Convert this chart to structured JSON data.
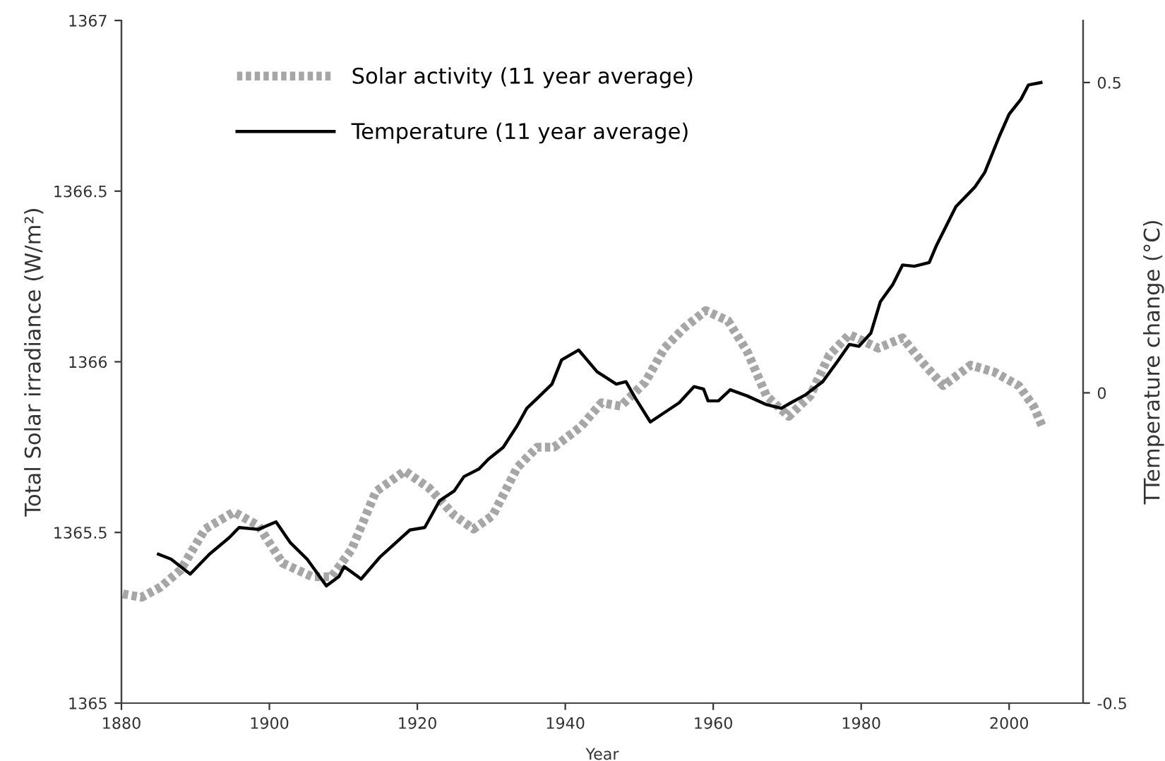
{
  "chart_data": {
    "type": "line",
    "xlabel": "Year",
    "ylabel": "Total Solar irradiance (W/m²)",
    "y2label": "TTemperature change (°C)",
    "xlim": [
      1880,
      2010
    ],
    "xticks": [
      1880,
      1900,
      1920,
      1940,
      1960,
      1980,
      2000
    ],
    "ylim": [
      1365,
      1367
    ],
    "yticks": [
      1365,
      1365.5,
      1366,
      1366.5,
      1367
    ],
    "y2lim": [
      -0.5,
      0.6
    ],
    "y2ticks": [
      -0.5,
      0,
      0.5
    ],
    "legend": "top left",
    "grid": false,
    "series": [
      {
        "name": "Solar activity (11 year average)",
        "color": "#a6a6a6",
        "line_style": "dotted",
        "x": [
          1880.2,
          1882.7,
          1885.3,
          1888,
          1891.3,
          1895.2,
          1898.5,
          1901.8,
          1905.8,
          1908.4,
          1911.1,
          1914.4,
          1918.3,
          1921.6,
          1925,
          1927.6,
          1930.2,
          1933.5,
          1936.2,
          1938.5,
          1942.1,
          1944.9,
          1947.5,
          1950.8,
          1953.4,
          1956.1,
          1959,
          1962,
          1964.6,
          1967.2,
          1970.2,
          1973.1,
          1975.7,
          1978.4,
          1982.3,
          1985.6,
          1988.2,
          1991.1,
          1994.8,
          1998,
          2001.3,
          2003.3,
          2004.5
        ],
        "values": [
          1365.32,
          1365.31,
          1365.34,
          1365.39,
          1365.51,
          1365.56,
          1365.52,
          1365.41,
          1365.37,
          1365.37,
          1365.45,
          1365.62,
          1365.68,
          1365.63,
          1365.55,
          1365.51,
          1365.55,
          1365.69,
          1365.75,
          1365.75,
          1365.81,
          1365.88,
          1365.87,
          1365.94,
          1366.04,
          1366.1,
          1366.15,
          1366.12,
          1366.03,
          1365.9,
          1365.84,
          1365.9,
          1366.02,
          1366.08,
          1366.04,
          1366.07,
          1366.0,
          1365.93,
          1365.99,
          1365.97,
          1365.93,
          1365.87,
          1365.81
        ]
      },
      {
        "name": "Temperature (11 year average)",
        "color": "#000000",
        "line_style": "solid",
        "axis": "y2",
        "x": [
          1885,
          1886.7,
          1889.3,
          1891.9,
          1894.6,
          1895.9,
          1898.5,
          1900.9,
          1902.8,
          1905.1,
          1907.7,
          1909.4,
          1910.1,
          1912.4,
          1915,
          1919,
          1921,
          1923,
          1925,
          1926.3,
          1928.3,
          1929.6,
          1931.6,
          1933.5,
          1934.8,
          1936.2,
          1938.2,
          1939.5,
          1941.8,
          1944.3,
          1946.9,
          1948.2,
          1949.5,
          1951.5,
          1955.4,
          1957.4,
          1958.7,
          1959.3,
          1960.7,
          1962.3,
          1964.6,
          1967.2,
          1969.2,
          1970.5,
          1972.5,
          1974.8,
          1976.7,
          1978.4,
          1979.7,
          1981.3,
          1982.6,
          1984.3,
          1985.6,
          1987.2,
          1989.2,
          1990.2,
          1992.8,
          1995.4,
          1996.7,
          1998.7,
          2000,
          2001.6,
          2002.6,
          2004.3
        ],
        "values": [
          -0.26,
          -0.268,
          -0.292,
          -0.26,
          -0.233,
          -0.217,
          -0.22,
          -0.208,
          -0.241,
          -0.268,
          -0.311,
          -0.296,
          -0.28,
          -0.3,
          -0.264,
          -0.221,
          -0.217,
          -0.174,
          -0.158,
          -0.135,
          -0.123,
          -0.107,
          -0.088,
          -0.053,
          -0.025,
          -0.009,
          0.014,
          0.053,
          0.069,
          0.034,
          0.014,
          0.018,
          -0.009,
          -0.047,
          -0.016,
          0.01,
          0.006,
          -0.013,
          -0.013,
          0.005,
          -0.005,
          -0.019,
          -0.025,
          -0.016,
          -0.003,
          0.018,
          0.049,
          0.078,
          0.075,
          0.096,
          0.147,
          0.175,
          0.206,
          0.204,
          0.21,
          0.238,
          0.3,
          0.332,
          0.355,
          0.414,
          0.449,
          0.473,
          0.496,
          0.5
        ]
      }
    ]
  }
}
